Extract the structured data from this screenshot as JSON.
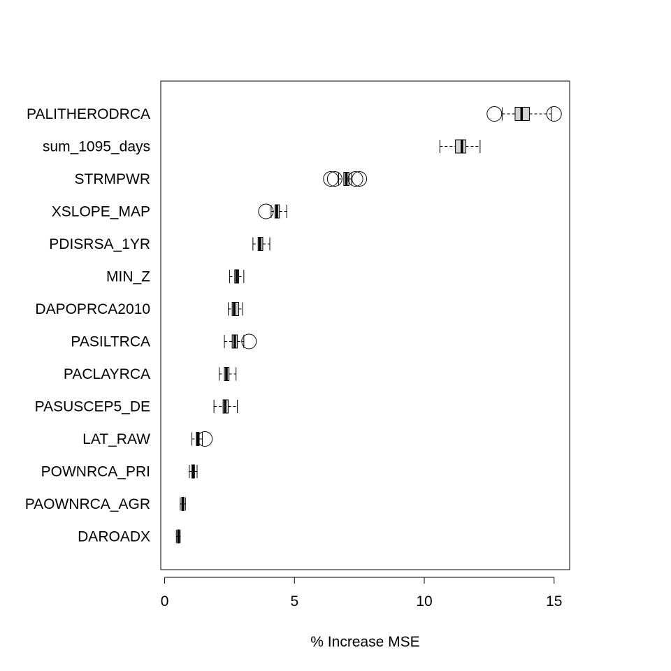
{
  "chart_data": {
    "type": "boxplot",
    "orientation": "horizontal",
    "xlabel": "% Increase MSE",
    "ylabel": "",
    "xlim": [
      -0.15,
      15.6
    ],
    "xticks": [
      0,
      5,
      10,
      15
    ],
    "xtick_labels": [
      "0",
      "5",
      "10",
      "15"
    ],
    "grid": false,
    "colors": {
      "box_fill": "#d3d3d3",
      "stroke": "#000000"
    },
    "categories": [
      "PALITHERODRCA",
      "sum_1095_days",
      "STRMPWR",
      "XSLOPE_MAP",
      "PDISRSA_1YR",
      "MIN_Z",
      "DAPOPRCA2010",
      "PASILTRCA",
      "PACLAYRCA",
      "PASUSCEP5_DE",
      "LAT_RAW",
      "POWNRCA_PRI",
      "PAOWNRCA_AGR",
      "DAROADX"
    ],
    "boxes": [
      {
        "whisker_low": 13.0,
        "q1": 13.5,
        "median": 13.75,
        "q3": 14.05,
        "whisker_high": 14.9,
        "outliers": [
          12.7,
          15.0
        ]
      },
      {
        "whisker_low": 10.6,
        "q1": 11.2,
        "median": 11.45,
        "q3": 11.6,
        "whisker_high": 12.15,
        "outliers": []
      },
      {
        "whisker_low": 6.7,
        "q1": 6.9,
        "median": 7.0,
        "q3": 7.1,
        "whisker_high": 7.2,
        "outliers": [
          6.4,
          6.55,
          7.35,
          7.5
        ]
      },
      {
        "whisker_low": 4.1,
        "q1": 4.25,
        "median": 4.32,
        "q3": 4.42,
        "whisker_high": 4.7,
        "outliers": [
          3.9
        ]
      },
      {
        "whisker_low": 3.4,
        "q1": 3.6,
        "median": 3.67,
        "q3": 3.78,
        "whisker_high": 4.05,
        "outliers": []
      },
      {
        "whisker_low": 2.5,
        "q1": 2.7,
        "median": 2.78,
        "q3": 2.85,
        "whisker_high": 3.05,
        "outliers": []
      },
      {
        "whisker_low": 2.45,
        "q1": 2.6,
        "median": 2.68,
        "q3": 2.85,
        "whisker_high": 3.0,
        "outliers": []
      },
      {
        "whisker_low": 2.3,
        "q1": 2.6,
        "median": 2.7,
        "q3": 2.8,
        "whisker_high": 3.05,
        "outliers": [
          3.25
        ]
      },
      {
        "whisker_low": 2.1,
        "q1": 2.3,
        "median": 2.38,
        "q3": 2.48,
        "whisker_high": 2.75,
        "outliers": []
      },
      {
        "whisker_low": 1.9,
        "q1": 2.25,
        "median": 2.33,
        "q3": 2.45,
        "whisker_high": 2.8,
        "outliers": []
      },
      {
        "whisker_low": 1.05,
        "q1": 1.22,
        "median": 1.28,
        "q3": 1.33,
        "whisker_high": 1.45,
        "outliers": [
          1.55
        ]
      },
      {
        "whisker_low": 0.95,
        "q1": 1.05,
        "median": 1.1,
        "q3": 1.15,
        "whisker_high": 1.25,
        "outliers": []
      },
      {
        "whisker_low": 0.6,
        "q1": 0.66,
        "median": 0.7,
        "q3": 0.74,
        "whisker_high": 0.8,
        "outliers": []
      },
      {
        "whisker_low": 0.45,
        "q1": 0.5,
        "median": 0.53,
        "q3": 0.56,
        "whisker_high": 0.6,
        "outliers": []
      }
    ]
  }
}
